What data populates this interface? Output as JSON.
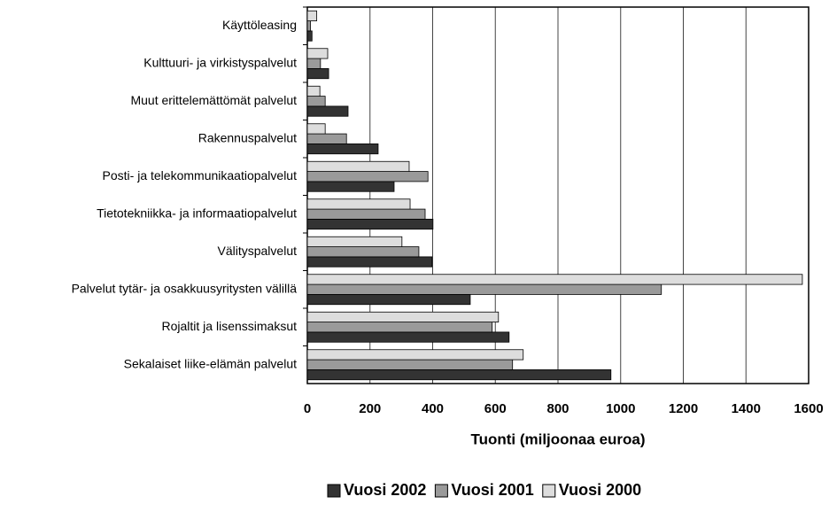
{
  "chart_data": {
    "type": "bar",
    "orientation": "horizontal",
    "categories": [
      "Käyttöleasing",
      "Kulttuuri- ja virkistyspalvelut",
      "Muut erittelemättömät palvelut",
      "Rakennuspalvelut",
      "Posti- ja telekommunikaatiopalvelut",
      "Tietotekniikka- ja informaatiopalvelut",
      "Välityspalvelut",
      "Palvelut tytär- ja osakkuusyritysten välillä",
      "Rojaltit ja lisenssimaksut",
      "Sekalaiset liike-elämän palvelut"
    ],
    "series": [
      {
        "name": "Vuosi 2002",
        "color": "#333333",
        "values": [
          15,
          68,
          130,
          226,
          277,
          401,
          398,
          520,
          644,
          969
        ]
      },
      {
        "name": "Vuosi 2001",
        "color": "#9a9a9a",
        "values": [
          10,
          42,
          57,
          125,
          385,
          376,
          356,
          1130,
          590,
          655
        ]
      },
      {
        "name": "Vuosi 2000",
        "color": "#dddddd",
        "values": [
          30,
          65,
          40,
          57,
          325,
          328,
          302,
          1580,
          610,
          689
        ]
      }
    ],
    "x_label": "Tuonti (miljoonaa euroa)",
    "xlim": [
      0,
      1600
    ],
    "xticks": [
      0,
      200,
      400,
      600,
      800,
      1000,
      1200,
      1400,
      1600
    ],
    "grid": true,
    "legend": "bottom"
  }
}
